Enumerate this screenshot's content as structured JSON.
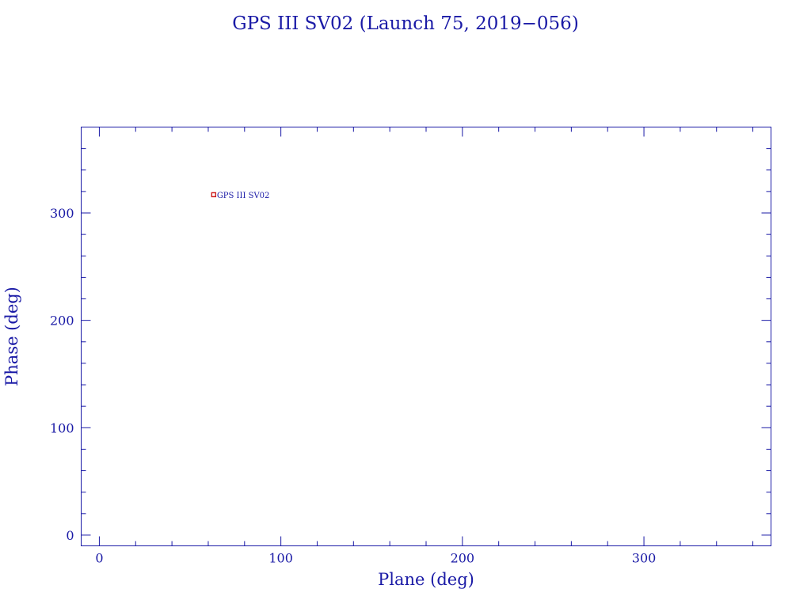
{
  "chart_data": {
    "type": "scatter",
    "title": "GPS III SV02 (Launch 75, 2019−056)",
    "xlabel": "Plane (deg)",
    "ylabel": "Phase (deg)",
    "xlim": [
      -10,
      370
    ],
    "ylim": [
      -10,
      380
    ],
    "xticks": [
      0,
      100,
      200,
      300
    ],
    "xtick_labels": [
      "0",
      "100",
      "200",
      "300"
    ],
    "yticks": [
      0,
      100,
      200,
      300
    ],
    "ytick_labels": [
      "0",
      "100",
      "200",
      "300"
    ],
    "x_minor_step": 20,
    "y_minor_step": 20,
    "grid": false,
    "points": [
      {
        "x": 63,
        "y": 317,
        "label": "GPS III SV02"
      }
    ],
    "colors": {
      "axes": "#1a1aa6",
      "marker": "#cc1a1a"
    }
  }
}
